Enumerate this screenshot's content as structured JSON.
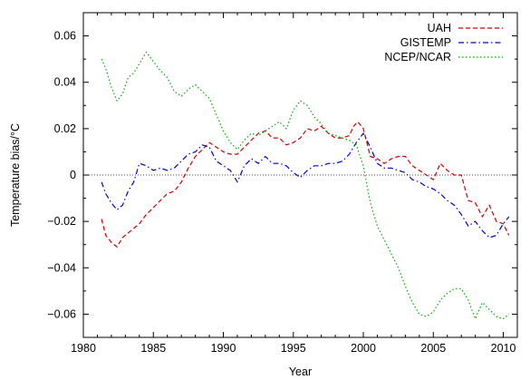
{
  "chart_data": {
    "type": "line",
    "title": "",
    "xlabel": "Year",
    "ylabel": "Temperature bias/°C",
    "xlim": [
      1980,
      2011
    ],
    "ylim": [
      -0.07,
      0.07
    ],
    "x_ticks": [
      1980,
      1985,
      1990,
      1995,
      2000,
      2005,
      2010
    ],
    "y_ticks": [
      -0.06,
      -0.04,
      -0.02,
      0,
      0.02,
      0.04,
      0.06
    ],
    "y_tick_labels": [
      "−0.06",
      "−0.04",
      "−0.02",
      "0",
      "0.02",
      "0.04",
      "0.06"
    ],
    "reference_line": {
      "y": 0,
      "style": "dotted",
      "color": "#555555"
    },
    "grid": false,
    "legend_position": "top-right",
    "series": [
      {
        "name": "UAH",
        "color": "#cc0000",
        "dash": "dashed",
        "x": [
          1981.3,
          1981.6,
          1982.0,
          1982.4,
          1982.8,
          1983.2,
          1983.6,
          1984.0,
          1984.5,
          1985.0,
          1985.5,
          1986.0,
          1986.5,
          1987.0,
          1987.5,
          1988.0,
          1988.5,
          1989.0,
          1989.5,
          1990.0,
          1990.5,
          1991.0,
          1991.5,
          1992.0,
          1992.5,
          1993.0,
          1993.5,
          1994.0,
          1994.5,
          1995.0,
          1995.5,
          1996.0,
          1996.5,
          1997.0,
          1997.5,
          1998.0,
          1998.5,
          1999.0,
          1999.3,
          1999.6,
          2000.0,
          2000.5,
          2001.0,
          2001.5,
          2002.0,
          2002.5,
          2003.0,
          2003.5,
          2004.0,
          2004.5,
          2005.0,
          2005.5,
          2006.0,
          2006.5,
          2007.0,
          2007.5,
          2008.0,
          2008.5,
          2009.0,
          2009.5,
          2010.0,
          2010.4
        ],
        "y": [
          -0.019,
          -0.026,
          -0.029,
          -0.031,
          -0.027,
          -0.025,
          -0.023,
          -0.021,
          -0.017,
          -0.014,
          -0.011,
          -0.008,
          -0.007,
          -0.003,
          0.003,
          0.008,
          0.011,
          0.014,
          0.012,
          0.01,
          0.009,
          0.009,
          0.012,
          0.015,
          0.018,
          0.019,
          0.016,
          0.016,
          0.013,
          0.014,
          0.016,
          0.02,
          0.019,
          0.021,
          0.018,
          0.016,
          0.016,
          0.017,
          0.021,
          0.023,
          0.02,
          0.008,
          0.007,
          0.005,
          0.007,
          0.008,
          0.008,
          0.004,
          0.002,
          0.0,
          -0.002,
          0.005,
          0.002,
          0.0,
          0.0,
          -0.011,
          -0.012,
          -0.018,
          -0.013,
          -0.02,
          -0.021,
          -0.026
        ]
      },
      {
        "name": "GISTEMP",
        "color": "#0000cc",
        "dash": "dashdot",
        "x": [
          1981.3,
          1981.6,
          1982.0,
          1982.4,
          1982.8,
          1983.2,
          1983.6,
          1984.0,
          1984.5,
          1985.0,
          1985.5,
          1986.0,
          1986.5,
          1987.0,
          1987.5,
          1988.0,
          1988.5,
          1989.0,
          1989.5,
          1990.0,
          1990.5,
          1991.0,
          1991.5,
          1992.0,
          1992.5,
          1993.0,
          1993.5,
          1994.0,
          1994.5,
          1995.0,
          1995.5,
          1996.0,
          1996.5,
          1997.0,
          1997.5,
          1998.0,
          1998.5,
          1999.0,
          1999.5,
          2000.0,
          2000.5,
          2001.0,
          2001.5,
          2002.0,
          2002.5,
          2003.0,
          2003.5,
          2004.0,
          2004.5,
          2005.0,
          2005.5,
          2006.0,
          2006.5,
          2007.0,
          2007.5,
          2008.0,
          2008.5,
          2009.0,
          2009.5,
          2010.0,
          2010.4
        ],
        "y": [
          -0.003,
          -0.008,
          -0.012,
          -0.015,
          -0.013,
          -0.007,
          -0.003,
          0.005,
          0.004,
          0.002,
          0.003,
          0.002,
          0.003,
          0.006,
          0.009,
          0.01,
          0.013,
          0.012,
          0.006,
          0.004,
          0.002,
          -0.003,
          0.004,
          0.007,
          0.005,
          0.008,
          0.005,
          0.005,
          0.004,
          0.001,
          -0.001,
          0.002,
          0.004,
          0.004,
          0.005,
          0.005,
          0.006,
          0.009,
          0.014,
          0.018,
          0.012,
          0.005,
          0.003,
          0.003,
          0.002,
          0.001,
          -0.002,
          -0.003,
          -0.005,
          -0.006,
          -0.008,
          -0.011,
          -0.013,
          -0.017,
          -0.022,
          -0.02,
          -0.024,
          -0.027,
          -0.026,
          -0.021,
          -0.018
        ]
      },
      {
        "name": "NCEP/NCAR",
        "color": "#00aa00",
        "dash": "dotted",
        "x": [
          1981.3,
          1981.6,
          1982.0,
          1982.4,
          1982.8,
          1983.2,
          1983.6,
          1984.0,
          1984.5,
          1985.0,
          1985.5,
          1986.0,
          1986.5,
          1987.0,
          1987.5,
          1988.0,
          1988.5,
          1989.0,
          1989.5,
          1990.0,
          1990.5,
          1991.0,
          1991.5,
          1992.0,
          1992.5,
          1993.0,
          1993.5,
          1994.0,
          1994.5,
          1995.0,
          1995.5,
          1996.0,
          1996.5,
          1997.0,
          1997.5,
          1998.0,
          1998.5,
          1999.0,
          1999.5,
          2000.0,
          2000.5,
          2001.0,
          2001.5,
          2002.0,
          2002.5,
          2003.0,
          2003.5,
          2004.0,
          2004.5,
          2005.0,
          2005.5,
          2006.0,
          2006.5,
          2007.0,
          2007.5,
          2008.0,
          2008.5,
          2009.0,
          2009.5,
          2010.0,
          2010.4
        ],
        "y": [
          0.05,
          0.046,
          0.038,
          0.032,
          0.035,
          0.042,
          0.044,
          0.048,
          0.053,
          0.049,
          0.045,
          0.042,
          0.036,
          0.034,
          0.037,
          0.039,
          0.036,
          0.033,
          0.026,
          0.019,
          0.014,
          0.011,
          0.015,
          0.018,
          0.017,
          0.019,
          0.021,
          0.023,
          0.02,
          0.028,
          0.032,
          0.03,
          0.025,
          0.022,
          0.018,
          0.017,
          0.016,
          0.015,
          0.013,
          0.004,
          -0.012,
          -0.022,
          -0.028,
          -0.034,
          -0.04,
          -0.048,
          -0.055,
          -0.06,
          -0.061,
          -0.059,
          -0.054,
          -0.051,
          -0.049,
          -0.049,
          -0.054,
          -0.062,
          -0.055,
          -0.058,
          -0.061,
          -0.062,
          -0.06
        ]
      }
    ]
  }
}
